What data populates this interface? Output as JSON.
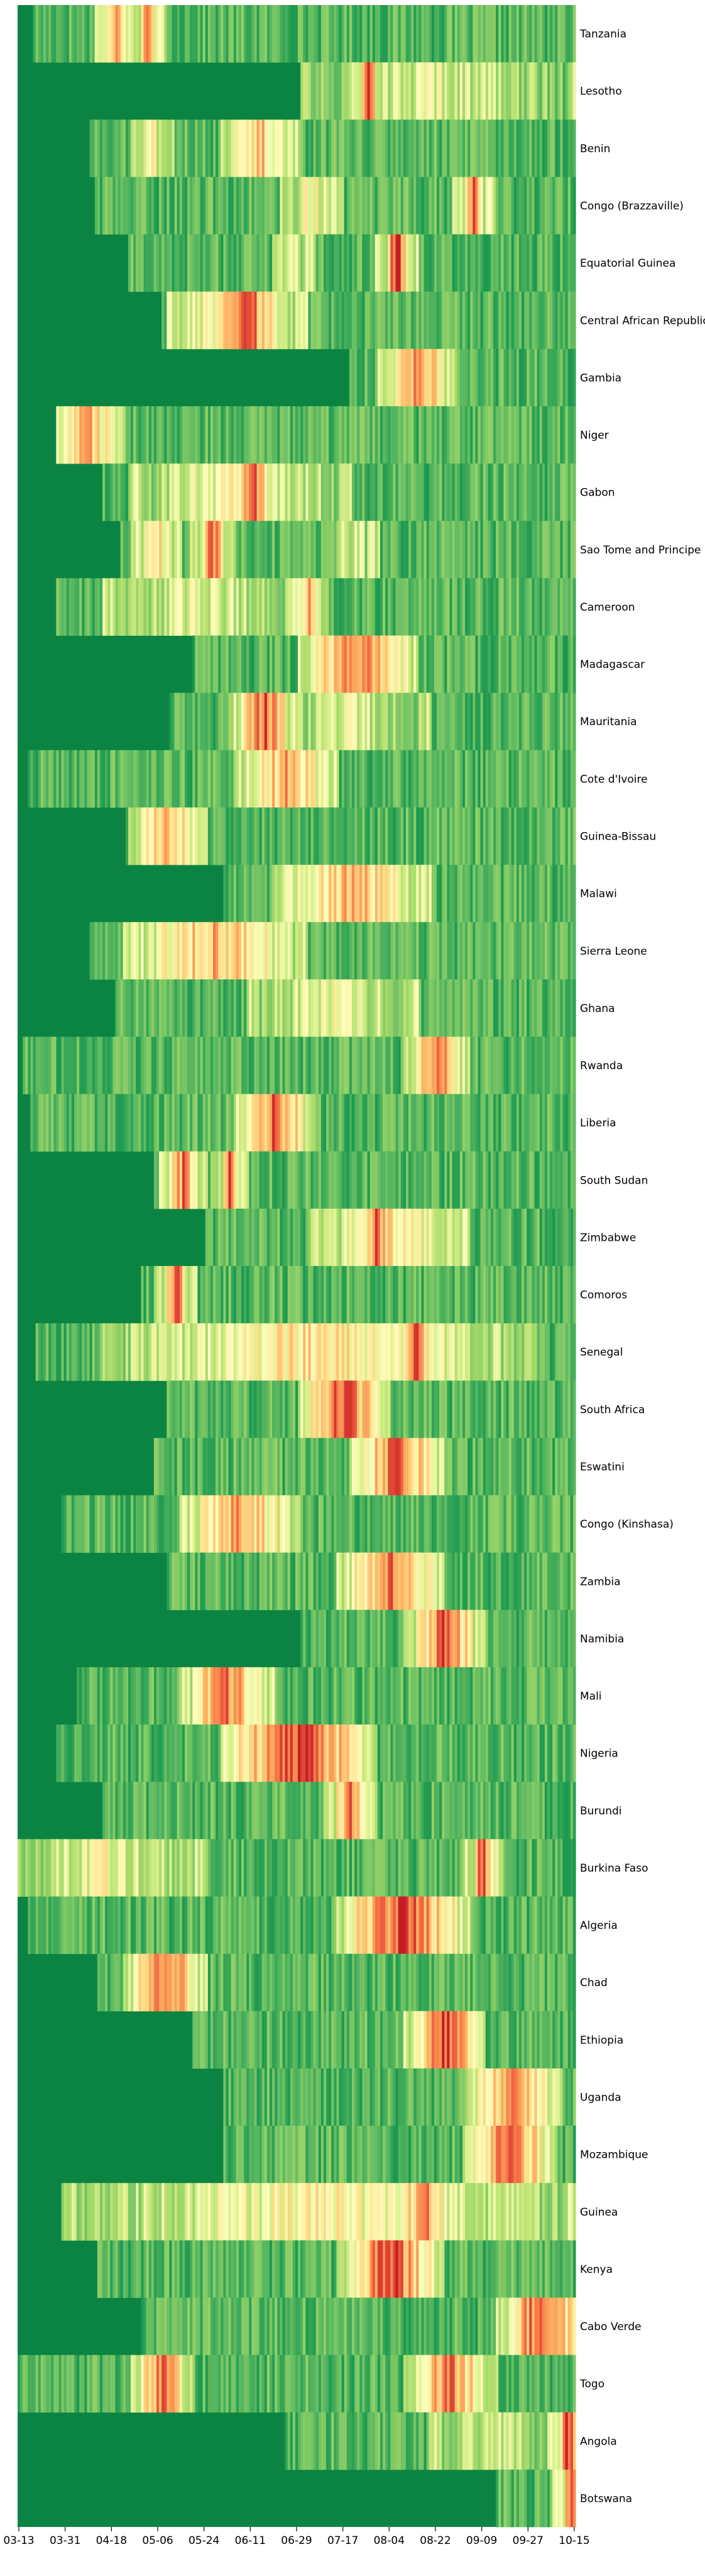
{
  "chart_data": {
    "type": "heatmap",
    "title": "",
    "xlabel": "",
    "ylabel": "",
    "colormap": "RdYlGn_r",
    "colors": {
      "low": "#0b8443",
      "mid": "#fefec0",
      "high": "#d7191c"
    },
    "x_tick_labels": [
      "03-13",
      "03-31",
      "04-18",
      "05-06",
      "05-24",
      "06-11",
      "06-29",
      "07-17",
      "08-04",
      "08-22",
      "09-09",
      "09-27",
      "10-15"
    ],
    "rows": [
      {
        "name": "Tanzania",
        "start": "03-19",
        "regions": [
          {
            "a": "04-17",
            "b": "04-23",
            "v": 0.9
          },
          {
            "a": "04-30",
            "b": "05-04",
            "v": 0.85
          }
        ]
      },
      {
        "name": "Lesotho",
        "start": "07-01",
        "regions": [
          {
            "a": "07-05",
            "b": "10-13",
            "v": 0.5
          },
          {
            "a": "07-25",
            "b": "07-29",
            "v": 0.95
          }
        ]
      },
      {
        "name": "Benin",
        "start": "04-10",
        "regions": [
          {
            "a": "05-01",
            "b": "05-07",
            "v": 0.6
          },
          {
            "a": "06-05",
            "b": "06-25",
            "v": 0.75
          }
        ]
      },
      {
        "name": "Congo (Brazzaville)",
        "start": "04-12",
        "regions": [
          {
            "a": "06-28",
            "b": "07-12",
            "v": 0.6
          },
          {
            "a": "09-03",
            "b": "09-09",
            "v": 0.85
          }
        ]
      },
      {
        "name": "Equatorial Guinea",
        "start": "04-25",
        "regions": [
          {
            "a": "06-25",
            "b": "07-01",
            "v": 0.5
          },
          {
            "a": "08-04",
            "b": "08-10",
            "v": 1.0
          }
        ]
      },
      {
        "name": "Central African Republic",
        "start": "05-08",
        "regions": [
          {
            "a": "05-15",
            "b": "06-28",
            "v": 0.7
          },
          {
            "a": "06-01",
            "b": "06-20",
            "v": 0.9
          }
        ]
      },
      {
        "name": "Gambia",
        "start": "07-20",
        "regions": [
          {
            "a": "08-05",
            "b": "08-25",
            "v": 0.85
          }
        ]
      },
      {
        "name": "Niger",
        "start": "03-28",
        "regions": [
          {
            "a": "03-28",
            "b": "04-18",
            "v": 0.8
          }
        ]
      },
      {
        "name": "Gabon",
        "start": "04-15",
        "regions": [
          {
            "a": "05-01",
            "b": "07-15",
            "v": 0.6
          },
          {
            "a": "06-08",
            "b": "06-16",
            "v": 0.95
          }
        ]
      },
      {
        "name": "Sao Tome and Principe",
        "start": "04-22",
        "regions": [
          {
            "a": "05-01",
            "b": "05-10",
            "v": 0.7
          },
          {
            "a": "05-24",
            "b": "05-31",
            "v": 0.9
          },
          {
            "a": "07-20",
            "b": "07-26",
            "v": 0.5
          }
        ]
      },
      {
        "name": "Cameroon",
        "start": "03-28",
        "regions": [
          {
            "a": "04-20",
            "b": "06-28",
            "v": 0.5
          },
          {
            "a": "07-01",
            "b": "07-06",
            "v": 0.8
          }
        ]
      },
      {
        "name": "Madagascar",
        "start": "05-20",
        "regions": [
          {
            "a": "07-05",
            "b": "08-10",
            "v": 0.85
          }
        ]
      },
      {
        "name": "Mauritania",
        "start": "05-11",
        "regions": [
          {
            "a": "06-08",
            "b": "06-25",
            "v": 0.9
          },
          {
            "a": "06-25",
            "b": "08-15",
            "v": 0.5
          }
        ]
      },
      {
        "name": "Cote d'Ivoire",
        "start": "03-17",
        "regions": [
          {
            "a": "06-10",
            "b": "07-10",
            "v": 0.8
          }
        ]
      },
      {
        "name": "Guinea-Bissau",
        "start": "04-24",
        "regions": [
          {
            "a": "04-30",
            "b": "05-20",
            "v": 0.8
          }
        ]
      },
      {
        "name": "Malawi",
        "start": "06-01",
        "regions": [
          {
            "a": "06-25",
            "b": "08-15",
            "v": 0.75
          }
        ]
      },
      {
        "name": "Sierra Leone",
        "start": "04-10",
        "regions": [
          {
            "a": "04-28",
            "b": "06-28",
            "v": 0.75
          }
        ]
      },
      {
        "name": "Ghana",
        "start": "04-20",
        "regions": [
          {
            "a": "06-15",
            "b": "08-10",
            "v": 0.55
          }
        ]
      },
      {
        "name": "Rwanda",
        "start": "03-15",
        "regions": [
          {
            "a": "08-15",
            "b": "08-30",
            "v": 0.9
          }
        ]
      },
      {
        "name": "Liberia",
        "start": "03-18",
        "regions": [
          {
            "a": "06-10",
            "b": "07-01",
            "v": 0.9
          }
        ]
      },
      {
        "name": "South Sudan",
        "start": "05-05",
        "regions": [
          {
            "a": "05-12",
            "b": "05-20",
            "v": 0.85
          },
          {
            "a": "06-01",
            "b": "06-05",
            "v": 0.95
          }
        ]
      },
      {
        "name": "Zimbabwe",
        "start": "05-25",
        "regions": [
          {
            "a": "07-10",
            "b": "08-30",
            "v": 0.65
          },
          {
            "a": "07-27",
            "b": "08-02",
            "v": 0.95
          }
        ]
      },
      {
        "name": "Comoros",
        "start": "04-30",
        "regions": [
          {
            "a": "05-10",
            "b": "05-16",
            "v": 0.95
          }
        ]
      },
      {
        "name": "Senegal",
        "start": "03-20",
        "regions": [
          {
            "a": "04-20",
            "b": "09-25",
            "v": 0.65
          },
          {
            "a": "08-10",
            "b": "08-20",
            "v": 0.9
          }
        ]
      },
      {
        "name": "South Africa",
        "start": "05-10",
        "regions": [
          {
            "a": "07-05",
            "b": "07-30",
            "v": 0.95
          }
        ]
      },
      {
        "name": "Eswatini",
        "start": "05-05",
        "regions": [
          {
            "a": "07-25",
            "b": "08-20",
            "v": 0.9
          }
        ]
      },
      {
        "name": "Congo (Kinshasa)",
        "start": "03-30",
        "regions": [
          {
            "a": "05-20",
            "b": "06-25",
            "v": 0.8
          }
        ]
      },
      {
        "name": "Zambia",
        "start": "05-10",
        "regions": [
          {
            "a": "07-20",
            "b": "08-20",
            "v": 0.85
          }
        ]
      },
      {
        "name": "Namibia",
        "start": "07-01",
        "regions": [
          {
            "a": "08-15",
            "b": "09-05",
            "v": 0.9
          }
        ]
      },
      {
        "name": "Mali",
        "start": "04-05",
        "regions": [
          {
            "a": "05-20",
            "b": "06-15",
            "v": 0.85
          }
        ]
      },
      {
        "name": "Nigeria",
        "start": "03-28",
        "regions": [
          {
            "a": "06-05",
            "b": "07-25",
            "v": 0.95
          }
        ]
      },
      {
        "name": "Burundi",
        "start": "04-15",
        "regions": [
          {
            "a": "07-15",
            "b": "07-25",
            "v": 0.9
          }
        ]
      },
      {
        "name": "Burkina Faso",
        "start": "03-13",
        "regions": [
          {
            "a": "03-13",
            "b": "05-20",
            "v": 0.55
          },
          {
            "a": "09-07",
            "b": "09-12",
            "v": 0.95
          }
        ]
      },
      {
        "name": "Algeria",
        "start": "03-17",
        "regions": [
          {
            "a": "07-20",
            "b": "08-30",
            "v": 0.95
          }
        ]
      },
      {
        "name": "Chad",
        "start": "04-13",
        "regions": [
          {
            "a": "04-28",
            "b": "05-20",
            "v": 0.9
          }
        ]
      },
      {
        "name": "Ethiopia",
        "start": "05-20",
        "regions": [
          {
            "a": "08-15",
            "b": "09-05",
            "v": 0.95
          }
        ]
      },
      {
        "name": "Uganda",
        "start": "06-01",
        "regions": [
          {
            "a": "09-08",
            "b": "10-05",
            "v": 0.85
          }
        ]
      },
      {
        "name": "Mozambique",
        "start": "06-01",
        "regions": [
          {
            "a": "09-07",
            "b": "10-03",
            "v": 0.9
          }
        ]
      },
      {
        "name": "Guinea",
        "start": "03-30",
        "regions": [
          {
            "a": "04-05",
            "b": "10-10",
            "v": 0.6
          },
          {
            "a": "08-10",
            "b": "08-25",
            "v": 0.85
          }
        ]
      },
      {
        "name": "Kenya",
        "start": "04-13",
        "regions": [
          {
            "a": "07-20",
            "b": "08-20",
            "v": 0.95
          }
        ]
      },
      {
        "name": "Cabo Verde",
        "start": "04-30",
        "regions": [
          {
            "a": "09-20",
            "b": "10-15",
            "v": 0.95
          }
        ]
      },
      {
        "name": "Togo",
        "start": "03-13",
        "regions": [
          {
            "a": "05-01",
            "b": "05-15",
            "v": 0.9
          },
          {
            "a": "08-15",
            "b": "09-10",
            "v": 0.85
          }
        ]
      },
      {
        "name": "Angola",
        "start": "06-25",
        "regions": [
          {
            "a": "08-25",
            "b": "10-05",
            "v": 0.5
          },
          {
            "a": "10-10",
            "b": "10-15",
            "v": 0.95
          }
        ]
      },
      {
        "name": "Botswana",
        "start": "09-15",
        "regions": [
          {
            "a": "10-12",
            "b": "10-15",
            "v": 0.95
          }
        ]
      }
    ]
  }
}
